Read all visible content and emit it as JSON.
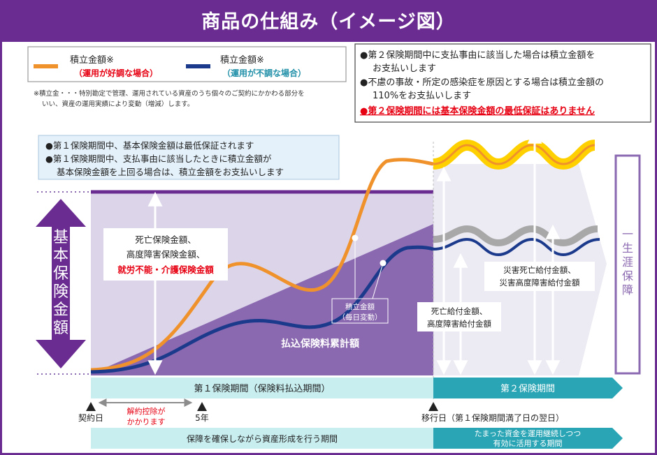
{
  "title": "商品の仕組み（イメージ図）",
  "legend": {
    "good_label": "積立金額※",
    "good_sub": "（運用が好調な場合）",
    "bad_label": "積立金額※",
    "bad_sub": "（運用が不調な場合）",
    "footnote_line1": "※積立金・・・特別勘定で管理、運用されている資産のうち個々のご契約にかかわる部分を",
    "footnote_line2": "いい、資産の運用実績により変動（増減）します。"
  },
  "notes_right": {
    "line1": "●第２保険期間中に支払事由に該当した場合は積立金額を",
    "line2": "お支払いします",
    "line3": "●不慮の事故・所定の感染症を原因とする場合は積立金額の",
    "line4": "110%をお支払いします",
    "line5": "●第２保険期間には基本保険金額の最低保証はありません"
  },
  "notes_left": {
    "line1": "●第１保険期間中、基本保険金額は最低保証されます",
    "line2": "●第１保険期間中、支払事由に該当したときに積立金額が",
    "line3": "基本保険金額を上回る場合は、積立金額をお支払いします"
  },
  "labels": {
    "basic_amount": "基本保険金額",
    "lifetime": "一生涯保障",
    "death_line1": "死亡保険金額、",
    "death_line2": "高度障害保険金額、",
    "death_line3": "就労不能・介護保険金額",
    "reserve_line1": "積立金額",
    "reserve_line2": "（毎日変動）",
    "premium_total": "払込保険料累計額",
    "death_benefit_line1": "死亡給付金額、",
    "death_benefit_line2": "高度障害給付金額",
    "disaster_line1": "災害死亡給付金額、",
    "disaster_line2": "災害高度障害給付金額"
  },
  "periods": {
    "first": "第１保険期間（保険料払込期間）",
    "second": "第２保険期間"
  },
  "timeline": {
    "contract_day": "契約日",
    "surrender_line1": "解約控除が",
    "surrender_line2": "かかります",
    "year5": "5年",
    "transition": "移行日（第１保険期間満了日の翌日）"
  },
  "bottom": {
    "first": "保障を確保しながら資産形成を行う期間",
    "second_line1": "たまった資金を運用継続しつつ",
    "second_line2": "有効に活用する期間"
  },
  "colors": {
    "purple": "#6a2c91",
    "orange": "#f0922c",
    "navy": "#1b3a8c",
    "red": "#e60012",
    "teal": "#2aa5b5",
    "gold": "#ffd000"
  }
}
